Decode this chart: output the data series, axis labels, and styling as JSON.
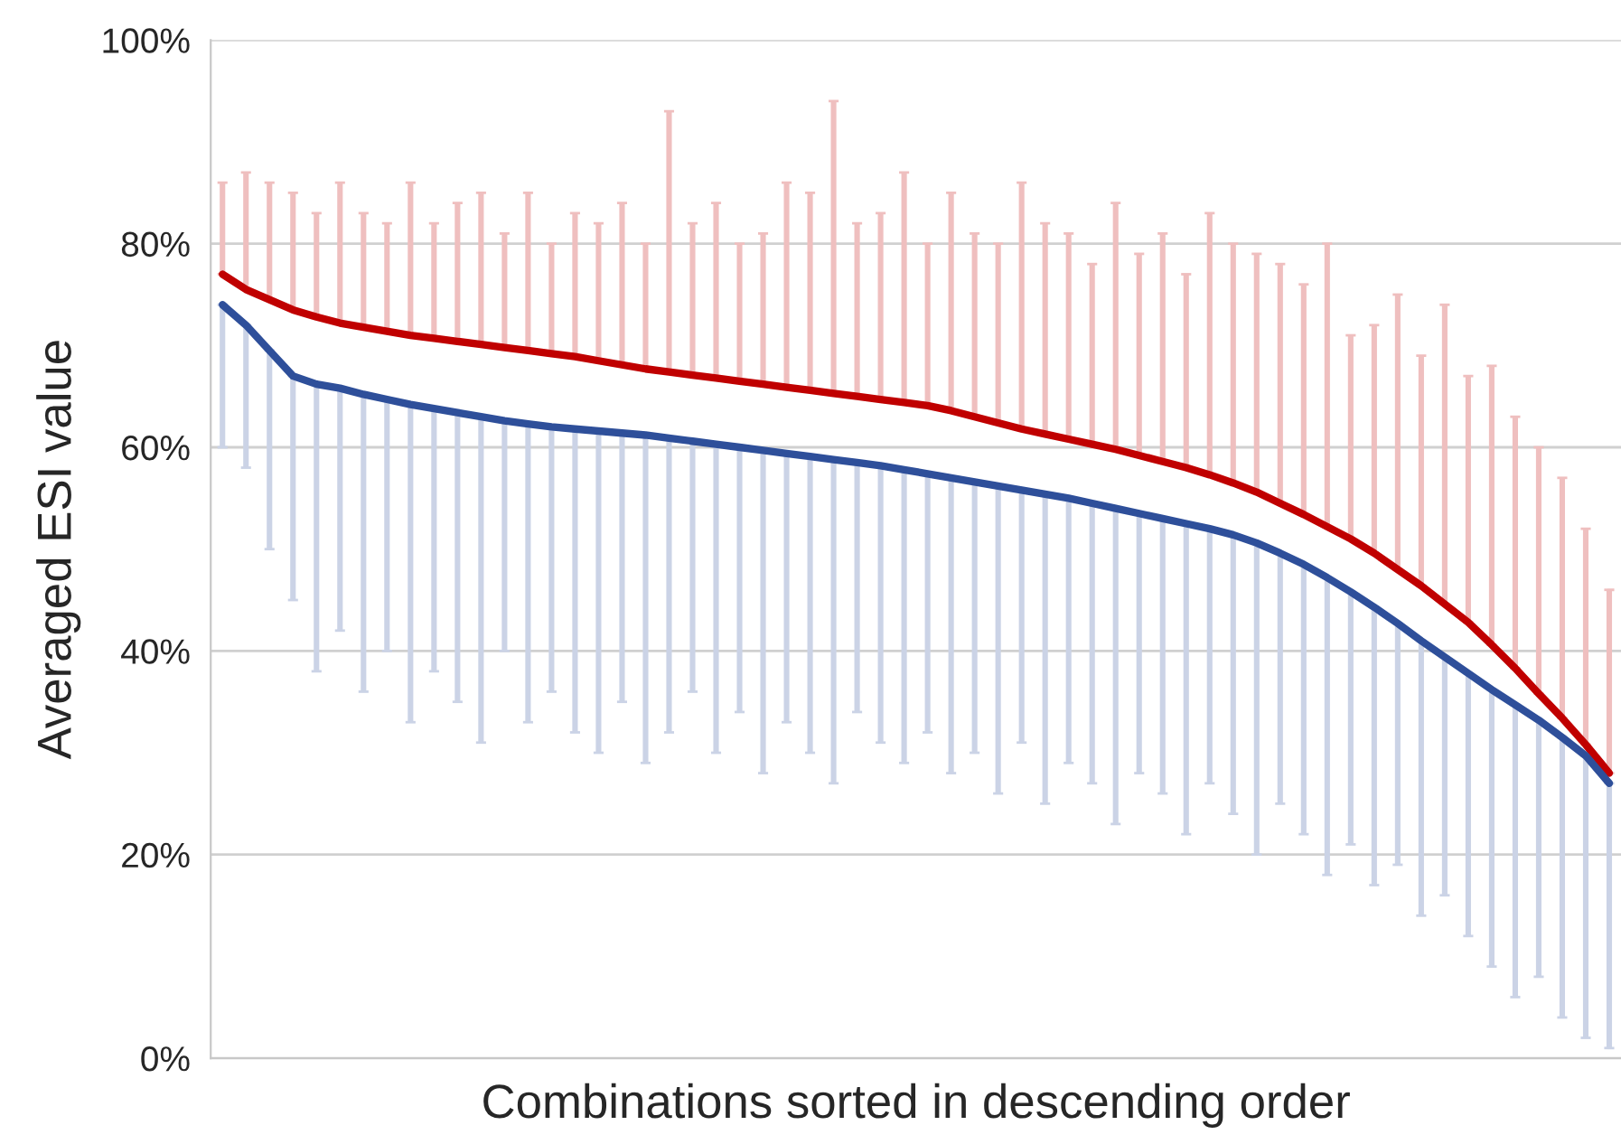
{
  "chart_data": {
    "type": "line",
    "xlabel": "Combinations sorted in descending order",
    "ylabel": "Averaged ESI value",
    "categories": [
      null,
      null,
      null,
      null,
      null,
      null,
      null,
      null,
      null,
      null,
      null,
      null,
      null,
      null,
      null,
      null,
      null,
      null,
      null,
      null,
      null,
      null,
      null,
      null,
      null,
      null,
      null,
      null,
      null,
      null,
      null,
      null,
      null,
      null,
      null,
      null,
      null,
      null,
      null,
      null,
      null,
      null,
      null,
      null,
      null,
      null,
      null,
      null,
      null,
      null,
      null,
      null,
      null,
      null,
      null,
      null,
      null,
      null,
      null,
      null
    ],
    "series": [
      {
        "color": "#c00000",
        "values": [
          77.0,
          75.5,
          74.5,
          73.5,
          72.8,
          72.2,
          71.8,
          71.4,
          71.0,
          70.7,
          70.4,
          70.1,
          69.8,
          69.5,
          69.2,
          68.9,
          68.5,
          68.1,
          67.7,
          67.4,
          67.1,
          66.8,
          66.5,
          66.2,
          65.9,
          65.6,
          65.3,
          65.0,
          64.7,
          64.4,
          64.1,
          63.6,
          63.0,
          62.4,
          61.8,
          61.3,
          60.8,
          60.3,
          59.8,
          59.2,
          58.6,
          58.0,
          57.3,
          56.5,
          55.6,
          54.5,
          53.4,
          52.2,
          51.0,
          49.6,
          48.0,
          46.4,
          44.6,
          42.8,
          40.6,
          38.3,
          35.8,
          33.4,
          30.8,
          28.0
        ],
        "errors": [
          [
            77.0,
            86
          ],
          [
            75.5,
            87
          ],
          [
            74.5,
            86
          ],
          [
            73.5,
            85
          ],
          [
            72.8,
            83
          ],
          [
            72.2,
            86
          ],
          [
            71.8,
            83
          ],
          [
            71.4,
            82
          ],
          [
            71.0,
            86
          ],
          [
            70.7,
            82
          ],
          [
            70.4,
            84
          ],
          [
            70.1,
            85
          ],
          [
            69.8,
            81
          ],
          [
            69.5,
            85
          ],
          [
            69.2,
            80
          ],
          [
            68.9,
            83
          ],
          [
            68.5,
            82
          ],
          [
            68.1,
            84
          ],
          [
            67.7,
            80
          ],
          [
            67.4,
            93
          ],
          [
            67.1,
            82
          ],
          [
            66.8,
            84
          ],
          [
            66.5,
            80
          ],
          [
            66.2,
            81
          ],
          [
            65.9,
            86
          ],
          [
            65.6,
            85
          ],
          [
            65.3,
            94
          ],
          [
            65.0,
            82
          ],
          [
            64.7,
            83
          ],
          [
            64.4,
            87
          ],
          [
            64.1,
            80
          ],
          [
            63.6,
            85
          ],
          [
            63.0,
            81
          ],
          [
            62.4,
            80
          ],
          [
            61.8,
            86
          ],
          [
            61.3,
            82
          ],
          [
            60.8,
            81
          ],
          [
            60.3,
            78
          ],
          [
            59.8,
            84
          ],
          [
            59.2,
            79
          ],
          [
            58.6,
            81
          ],
          [
            58.0,
            77
          ],
          [
            57.3,
            83
          ],
          [
            56.5,
            80
          ],
          [
            55.6,
            79
          ],
          [
            54.5,
            78
          ],
          [
            53.4,
            76
          ],
          [
            52.2,
            80
          ],
          [
            51.0,
            71
          ],
          [
            49.6,
            72
          ],
          [
            48.0,
            75
          ],
          [
            46.4,
            69
          ],
          [
            44.6,
            74
          ],
          [
            42.8,
            67
          ],
          [
            40.6,
            68
          ],
          [
            38.3,
            63
          ],
          [
            35.8,
            60
          ],
          [
            33.4,
            57
          ],
          [
            30.8,
            52
          ],
          [
            28.0,
            46
          ]
        ]
      },
      {
        "color": "#2e4f9a",
        "values": [
          74.0,
          72.0,
          69.5,
          67.0,
          66.2,
          65.8,
          65.2,
          64.7,
          64.2,
          63.8,
          63.4,
          63.0,
          62.6,
          62.3,
          62.0,
          61.8,
          61.6,
          61.4,
          61.2,
          60.9,
          60.6,
          60.3,
          60.0,
          59.7,
          59.4,
          59.1,
          58.8,
          58.5,
          58.2,
          57.8,
          57.4,
          57.0,
          56.6,
          56.2,
          55.8,
          55.4,
          55.0,
          54.5,
          54.0,
          53.5,
          53.0,
          52.5,
          52.0,
          51.4,
          50.6,
          49.6,
          48.5,
          47.2,
          45.8,
          44.3,
          42.7,
          41.0,
          39.4,
          37.8,
          36.2,
          34.7,
          33.2,
          31.5,
          29.7,
          27.0
        ],
        "errors": [
          [
            60,
            74.0
          ],
          [
            58,
            72.0
          ],
          [
            50,
            69.5
          ],
          [
            45,
            67.0
          ],
          [
            38,
            66.2
          ],
          [
            42,
            65.8
          ],
          [
            36,
            65.2
          ],
          [
            40,
            64.7
          ],
          [
            33,
            64.2
          ],
          [
            38,
            63.8
          ],
          [
            35,
            63.4
          ],
          [
            31,
            63.0
          ],
          [
            40,
            62.6
          ],
          [
            33,
            62.3
          ],
          [
            36,
            62.0
          ],
          [
            32,
            61.8
          ],
          [
            30,
            61.6
          ],
          [
            35,
            61.4
          ],
          [
            29,
            61.2
          ],
          [
            32,
            60.9
          ],
          [
            36,
            60.6
          ],
          [
            30,
            60.3
          ],
          [
            34,
            60.0
          ],
          [
            28,
            59.7
          ],
          [
            33,
            59.4
          ],
          [
            30,
            59.1
          ],
          [
            27,
            58.8
          ],
          [
            34,
            58.5
          ],
          [
            31,
            58.2
          ],
          [
            29,
            57.8
          ],
          [
            32,
            57.4
          ],
          [
            28,
            57.0
          ],
          [
            30,
            56.6
          ],
          [
            26,
            56.2
          ],
          [
            31,
            55.8
          ],
          [
            25,
            55.4
          ],
          [
            29,
            55.0
          ],
          [
            27,
            54.5
          ],
          [
            23,
            54.0
          ],
          [
            28,
            53.5
          ],
          [
            26,
            53.0
          ],
          [
            22,
            52.5
          ],
          [
            27,
            52.0
          ],
          [
            24,
            51.4
          ],
          [
            20,
            50.6
          ],
          [
            25,
            49.6
          ],
          [
            22,
            48.5
          ],
          [
            18,
            47.2
          ],
          [
            21,
            45.8
          ],
          [
            17,
            44.3
          ],
          [
            19,
            42.7
          ],
          [
            14,
            41.0
          ],
          [
            16,
            39.4
          ],
          [
            12,
            37.8
          ],
          [
            9,
            36.2
          ],
          [
            6,
            34.7
          ],
          [
            8,
            33.2
          ],
          [
            4,
            31.5
          ],
          [
            2,
            29.7
          ],
          [
            1,
            27.0
          ]
        ]
      }
    ],
    "ylim": [
      0,
      100
    ],
    "yticks": [
      {
        "value": 0,
        "label": "0%"
      },
      {
        "value": 20,
        "label": "20%"
      },
      {
        "value": 40,
        "label": "40%"
      },
      {
        "value": 60,
        "label": "60%"
      },
      {
        "value": 80,
        "label": "80%"
      },
      {
        "value": 100,
        "label": "100%"
      }
    ],
    "grid": "y",
    "tick_labels": "y",
    "marker": "none",
    "line_style": "solid"
  }
}
